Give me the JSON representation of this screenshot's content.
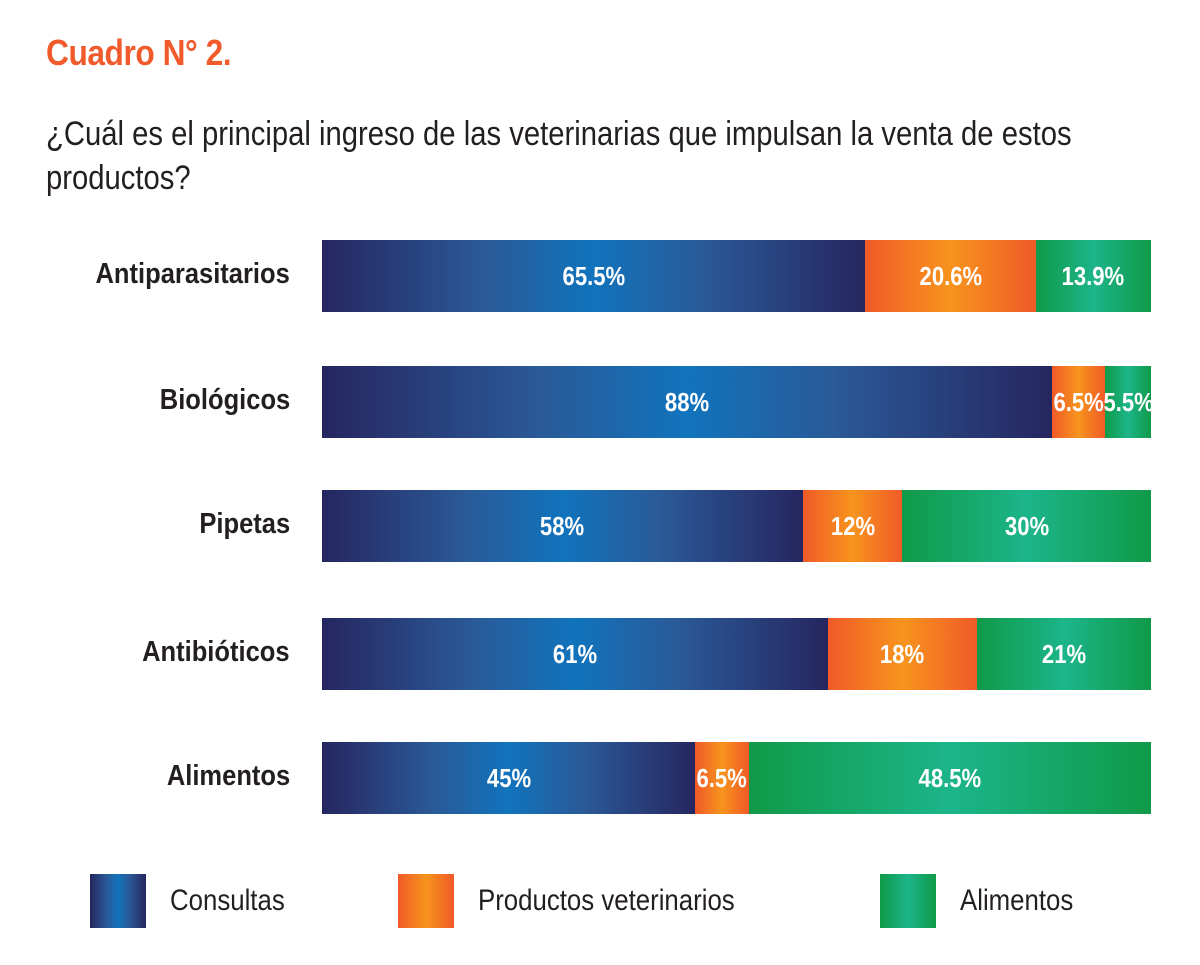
{
  "title": "Cuadro N° 2.",
  "question": "¿Cuál es el principal ingreso de las veterinarias que impulsan la venta de estos productos?",
  "chart_data": {
    "type": "bar",
    "orientation": "horizontal",
    "stacked": true,
    "title": "¿Cuál es el principal ingreso de las veterinarias que impulsan la venta de estos productos?",
    "categories": [
      "Antiparasitarios",
      "Biológicos",
      "Pipetas",
      "Antibióticos",
      "Alimentos"
    ],
    "series": [
      {
        "name": "Consultas",
        "values": [
          65.5,
          88,
          58,
          61,
          45
        ],
        "labels": [
          "65.5%",
          "88%",
          "58%",
          "61%",
          "45%"
        ],
        "color": "#1173bc"
      },
      {
        "name": "Productos veterinarios",
        "values": [
          20.6,
          6.5,
          12,
          18,
          6.5
        ],
        "labels": [
          "20.6%",
          "6.5%",
          "12%",
          "18%",
          "6.5%"
        ],
        "color": "#f7941d"
      },
      {
        "name": "Alimentos",
        "values": [
          13.9,
          5.5,
          30,
          21,
          48.5
        ],
        "labels": [
          "13.9%",
          "5.5%",
          "30%",
          "21%",
          "48.5%"
        ],
        "color": "#1cb58a"
      }
    ],
    "xlim": [
      0,
      100
    ],
    "xlabel": "",
    "ylabel": "",
    "grid": false,
    "legend_position": "bottom"
  }
}
